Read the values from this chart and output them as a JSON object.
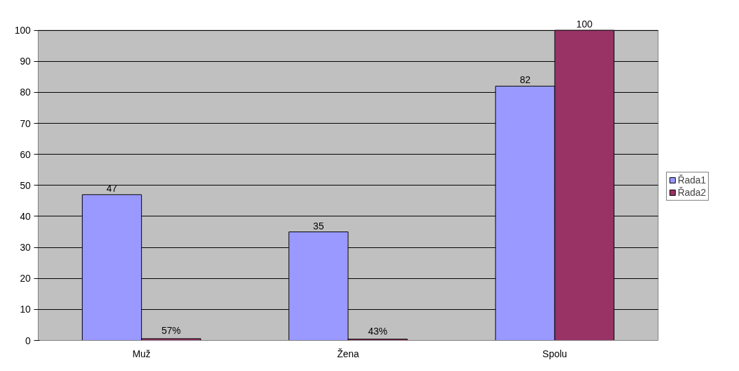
{
  "chart_data": {
    "type": "bar",
    "categories": [
      "Muž",
      "Žena",
      "Spolu"
    ],
    "series": [
      {
        "name": "Řada1",
        "color": "#9999ff",
        "values": [
          47,
          35,
          82
        ],
        "value_labels": [
          "47",
          "35",
          "82"
        ]
      },
      {
        "name": "Řada2",
        "color": "#993366",
        "values": [
          0.57,
          0.43,
          100
        ],
        "value_labels": [
          "57%",
          "43%",
          "100"
        ]
      }
    ],
    "ylim": [
      0,
      100
    ],
    "yticks": [
      0,
      10,
      20,
      30,
      40,
      50,
      60,
      70,
      80,
      90,
      100
    ],
    "grid": "y",
    "legend": "right"
  }
}
